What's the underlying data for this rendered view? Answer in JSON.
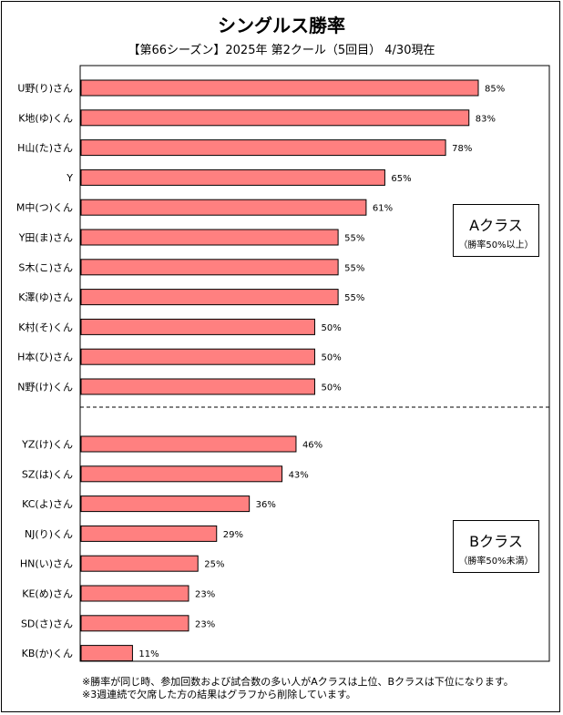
{
  "title": "シングルス勝率",
  "subtitle": "【第66シーズン】2025年 第2クール（5回目） 4/30現在",
  "colors": {
    "bar": "#FF8080",
    "bar_stroke": "#000000"
  },
  "class_a": {
    "label": "Aクラス",
    "note": "（勝率50%以上）"
  },
  "class_b": {
    "label": "Bクラス",
    "note": "（勝率50%未満）"
  },
  "notes": [
    "※勝率が同じ時、参加回数および試合数の多い人がAクラスは上位、Bクラスは下位になります。",
    "※3週連続で欠席した方の結果はグラフから削除しています。"
  ],
  "chart_data": {
    "type": "bar",
    "orientation": "horizontal",
    "categories": [
      "U野(り)さん",
      "K地(ゆ)くん",
      "H山(た)さん",
      "Y",
      "M中(つ)くん",
      "Y田(ま)さん",
      "S木(こ)さん",
      "K澤(ゆ)さん",
      "K村(そ)くん",
      "H本(ひ)さん",
      "N野(け)くん",
      "YZ(け)くん",
      "SZ(は)くん",
      "KC(よ)さん",
      "NJ(り)くん",
      "HN(い)さん",
      "KE(め)さん",
      "SD(さ)さん",
      "KB(か)くん"
    ],
    "values": [
      85,
      83,
      78,
      65,
      61,
      55,
      55,
      55,
      50,
      50,
      50,
      46,
      43,
      36,
      29,
      25,
      23,
      23,
      11
    ],
    "value_labels": [
      "85%",
      "83%",
      "78%",
      "65%",
      "61%",
      "55%",
      "55%",
      "55%",
      "50%",
      "50%",
      "50%",
      "46%",
      "43%",
      "36%",
      "29%",
      "25%",
      "23%",
      "23%",
      "11%"
    ],
    "xlim": [
      0,
      100
    ],
    "groups": [
      {
        "name": "Aクラス",
        "count": 11
      },
      {
        "name": "Bクラス",
        "count": 8
      }
    ],
    "grid": false
  }
}
